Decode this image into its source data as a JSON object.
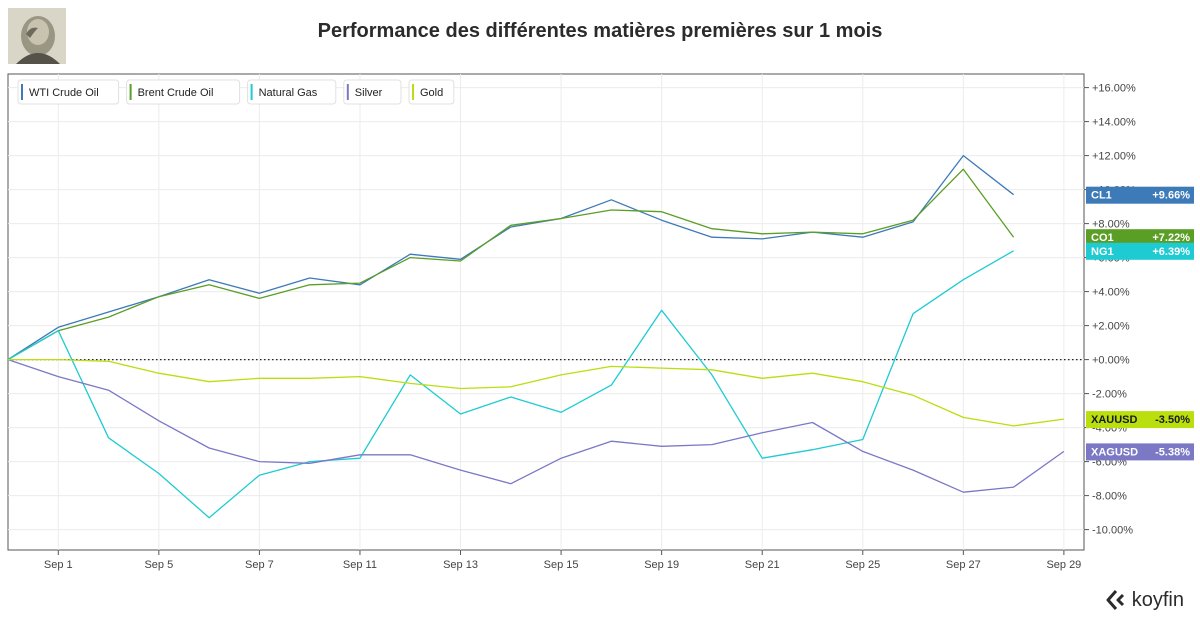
{
  "title": "Performance des différentes matières premières sur 1 mois",
  "brand": "koyfin",
  "chart_data": {
    "type": "line",
    "title": "Performance des différentes matières premières sur 1 mois",
    "x": [
      0,
      1,
      2,
      3,
      4,
      5,
      6,
      7,
      8,
      9,
      10,
      11,
      12,
      13,
      14,
      15,
      16,
      17,
      18,
      19,
      20,
      21
    ],
    "x_start_day": 31,
    "x_ticks": [
      "Sep 1",
      "Sep 5",
      "Sep 7",
      "Sep 11",
      "Sep 13",
      "Sep 15",
      "Sep 19",
      "Sep 21",
      "Sep 25",
      "Sep 27",
      "Sep 29"
    ],
    "x_tick_positions": [
      1,
      3,
      5,
      7,
      9,
      11,
      13,
      15,
      17,
      19,
      21
    ],
    "ylim": [
      -11.2,
      16.8
    ],
    "y_ticks": [
      -10,
      -8,
      -6,
      -4,
      -2,
      0,
      2,
      4,
      6,
      8,
      10,
      12,
      14,
      16
    ],
    "y_tick_labels": [
      "-10.00%",
      "-8.00%",
      "-6.00%",
      "-4.00%",
      "-2.00%",
      "+0.00%",
      "+2.00%",
      "+4.00%",
      "+6.00%",
      "+8.00%",
      "+10.00%",
      "+12.00%",
      "+14.00%",
      "+16.00%"
    ],
    "grid": true,
    "legend_position": "top-left",
    "series": [
      {
        "name": "WTI Crude Oil",
        "color": "#3d7ab8",
        "tag": "CL1",
        "tag_value": "+9.66%",
        "tag_text_color": "light",
        "values": [
          0,
          1.9,
          2.8,
          3.7,
          4.7,
          3.9,
          4.8,
          4.4,
          6.2,
          5.9,
          7.8,
          8.3,
          9.4,
          8.2,
          7.2,
          7.1,
          7.5,
          7.2,
          8.1,
          12.0,
          9.7,
          null
        ]
      },
      {
        "name": "Brent Crude Oil",
        "color": "#5a9e25",
        "tag": "CO1",
        "tag_value": "+7.22%",
        "tag_text_color": "light",
        "values": [
          0,
          1.7,
          2.5,
          3.7,
          4.4,
          3.6,
          4.4,
          4.5,
          6.0,
          5.8,
          7.9,
          8.3,
          8.8,
          8.7,
          7.7,
          7.4,
          7.5,
          7.4,
          8.2,
          11.2,
          7.2,
          null
        ]
      },
      {
        "name": "Natural Gas",
        "color": "#1ecbd2",
        "tag": "NG1",
        "tag_value": "+6.39%",
        "tag_text_color": "light",
        "values": [
          0,
          1.7,
          -4.6,
          -6.7,
          -9.3,
          -6.8,
          -6.0,
          -5.8,
          -0.9,
          -3.2,
          -2.2,
          -3.1,
          -1.5,
          2.9,
          -0.9,
          -5.8,
          -5.3,
          -4.7,
          2.7,
          4.7,
          6.4,
          null
        ]
      },
      {
        "name": "Silver",
        "color": "#7b78c6",
        "tag": "XAGUSD",
        "tag_value": "-5.38%",
        "tag_text_color": "light",
        "values": [
          0,
          -1.0,
          -1.8,
          -3.6,
          -5.2,
          -6.0,
          -6.1,
          -5.6,
          -5.6,
          -6.5,
          -7.3,
          -5.8,
          -4.8,
          -5.1,
          -5.0,
          -4.3,
          -3.7,
          -5.4,
          -6.5,
          -7.8,
          -7.5,
          -5.4
        ]
      },
      {
        "name": "Gold",
        "color": "#b9df0e",
        "tag": "XAUUSD",
        "tag_value": "-3.50%",
        "tag_text_color": "dark",
        "values": [
          0,
          0,
          -0.1,
          -0.8,
          -1.3,
          -1.1,
          -1.1,
          -1.0,
          -1.4,
          -1.7,
          -1.6,
          -0.9,
          -0.4,
          -0.5,
          -0.6,
          -1.1,
          -0.8,
          -1.3,
          -2.1,
          -3.4,
          -3.9,
          -3.5
        ]
      }
    ]
  }
}
